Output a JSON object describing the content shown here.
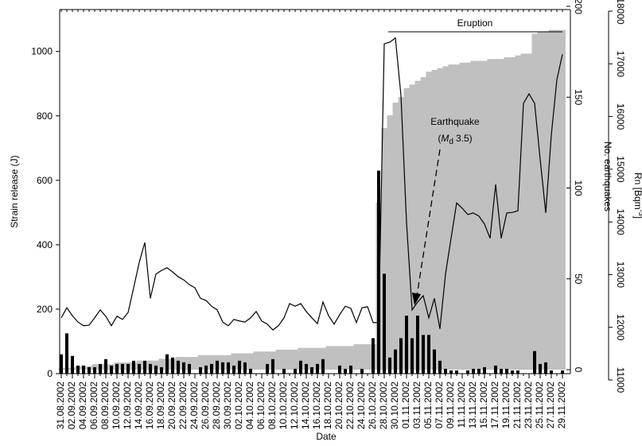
{
  "chart_data": {
    "type": "combo",
    "x_label": "Date",
    "y_label": "Strain release (J)",
    "y2_label": "No. earthquakes",
    "y3_label": [
      "Rn [Bqm",
      "-3",
      "]"
    ],
    "annotations": {
      "eruption": "Eruption",
      "earthquake": [
        "Earthquake",
        "(",
        "M",
        "d",
        "3.5)"
      ]
    },
    "categories": [
      "31.08.2002",
      null,
      "02.09.2002",
      null,
      "04.09.2002",
      null,
      "06.09.2002",
      null,
      "08.09.2002",
      null,
      "10.09.2002",
      null,
      "12.09.2002",
      null,
      "14.09.2002",
      null,
      "16.09.2002",
      null,
      "18.09.2002",
      null,
      "20.09.2002",
      null,
      "22.09.2002",
      null,
      "24.09.2002",
      null,
      "26.09.2002",
      null,
      "28.09.2002",
      null,
      "30.09.2002",
      null,
      "02.10.2002",
      null,
      "04.10.2002",
      null,
      "06.10.2002",
      null,
      "08.10.2002",
      null,
      "10.10.2002",
      null,
      "12.10.2002",
      null,
      "14.10.2002",
      null,
      "16.10.2002",
      null,
      "18.10.2002",
      null,
      "20.10.2002",
      null,
      "22.10.2002",
      null,
      "24.10.2002",
      null,
      "26.10.2002",
      null,
      "28.10.2002",
      null,
      "30.10.2002",
      null,
      "01.11.2002",
      null,
      "03.11.2002",
      null,
      "05.11.2002",
      null,
      "07.11.2002",
      null,
      "09.11.2002",
      null,
      "11.11.2002",
      null,
      "13.11.2002",
      null,
      "15.11.2002",
      null,
      "17.11.2002",
      null,
      "19.11.2002",
      null,
      "21.11.2002",
      null,
      "23.11.2002",
      null,
      "25.11.2002",
      null,
      "27.11.2002",
      null,
      "29.11.2002"
    ],
    "series": [
      {
        "name": "No. earthquakes",
        "kind": "area",
        "axis": "y2",
        "color": "#c0c0c0",
        "values": [
          1,
          1,
          1,
          2,
          2,
          2,
          3,
          3,
          3,
          3,
          4,
          4,
          4,
          4,
          5,
          5,
          5,
          5,
          6,
          6,
          6,
          7,
          7,
          7,
          7,
          8,
          8,
          8,
          8,
          8,
          8,
          9,
          9,
          9,
          9,
          10,
          10,
          10,
          10,
          11,
          11,
          11,
          11,
          12,
          12,
          12,
          12,
          12,
          13,
          13,
          13,
          13,
          13,
          14,
          14,
          14,
          14,
          92,
          133,
          140,
          147,
          150,
          155,
          157,
          159,
          161,
          164,
          165,
          166,
          167,
          168,
          168,
          169,
          169,
          170,
          170,
          170,
          171,
          171,
          171,
          172,
          172,
          173,
          174,
          174,
          185,
          186,
          186,
          187,
          187,
          187
        ]
      },
      {
        "name": "Strain release",
        "kind": "bar",
        "axis": "y",
        "color": "#000000",
        "values": [
          60,
          125,
          55,
          25,
          25,
          20,
          20,
          30,
          45,
          25,
          30,
          30,
          30,
          40,
          30,
          40,
          30,
          25,
          20,
          60,
          50,
          40,
          35,
          30,
          0,
          20,
          25,
          30,
          40,
          35,
          35,
          25,
          40,
          35,
          15,
          0,
          0,
          30,
          45,
          0,
          15,
          0,
          15,
          40,
          30,
          20,
          30,
          45,
          0,
          0,
          25,
          15,
          25,
          0,
          15,
          0,
          110,
          630,
          310,
          50,
          75,
          110,
          180,
          110,
          180,
          120,
          120,
          75,
          40,
          15,
          10,
          10,
          0,
          10,
          15,
          15,
          20,
          0,
          25,
          15,
          15,
          10,
          10,
          0,
          0,
          70,
          30,
          35,
          10,
          0,
          10
        ]
      },
      {
        "name": "Rn",
        "kind": "line",
        "axis": "y3",
        "color": "#000000",
        "values": [
          12180,
          12370,
          12220,
          12100,
          12030,
          12040,
          12180,
          12330,
          12210,
          12030,
          12210,
          12150,
          12280,
          12750,
          13230,
          13610,
          12550,
          13010,
          13080,
          13130,
          13050,
          12960,
          12900,
          12810,
          12750,
          12550,
          12510,
          12400,
          12330,
          12100,
          12030,
          12150,
          12120,
          12100,
          12180,
          12300,
          12120,
          12060,
          11950,
          12030,
          12180,
          12450,
          12400,
          12450,
          12300,
          12180,
          12070,
          12480,
          12220,
          12060,
          12240,
          12400,
          12360,
          12090,
          12370,
          12390,
          12090,
          12090,
          17380,
          17410,
          17490,
          16400,
          13990,
          12330,
          12480,
          12600,
          12180,
          12550,
          11970,
          13010,
          13690,
          14360,
          14260,
          14140,
          14170,
          14110,
          13960,
          13690,
          14710,
          13690,
          14170,
          14180,
          14210,
          16250,
          16430,
          16250,
          15190,
          14170,
          15650,
          16700,
          17180
        ]
      }
    ],
    "ylim": [
      0,
      1130
    ],
    "yticks": [
      0,
      200,
      400,
      600,
      800,
      1000
    ],
    "y2lim": [
      0,
      200
    ],
    "y2ticks": [
      0,
      50,
      100,
      150,
      200
    ],
    "y3lim": [
      11000,
      18000
    ],
    "y3ticks": [
      11000,
      12000,
      13000,
      14000,
      15000,
      16000,
      17000,
      18000
    ]
  }
}
